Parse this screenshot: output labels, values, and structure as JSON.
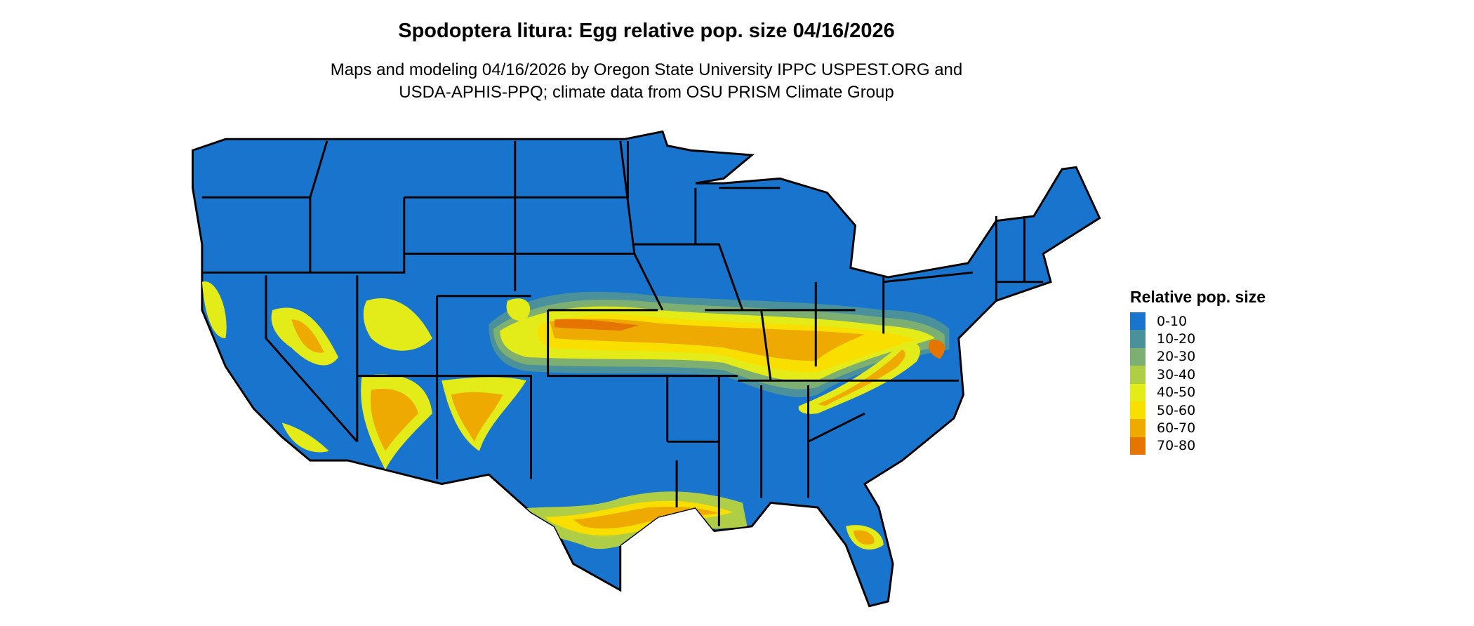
{
  "title": "Spodoptera litura: Egg relative pop. size 04/16/2026",
  "subtitle_line1": "Maps and modeling 04/16/2026 by Oregon State University IPPC USPEST.ORG and",
  "subtitle_line2": "USDA-APHIS-PPQ; climate data from OSU PRISM Climate Group",
  "legend": {
    "title": "Relative pop. size",
    "items": [
      {
        "label": "0-10",
        "color": "#1874CD"
      },
      {
        "label": "10-20",
        "color": "#4A919C"
      },
      {
        "label": "20-30",
        "color": "#7DAF72"
      },
      {
        "label": "30-40",
        "color": "#B0CE45"
      },
      {
        "label": "40-50",
        "color": "#E3EC18"
      },
      {
        "label": "50-60",
        "color": "#F8DF00"
      },
      {
        "label": "60-70",
        "color": "#EEAA00"
      },
      {
        "label": "70-80",
        "color": "#E57500"
      }
    ]
  },
  "map": {
    "region": "Contiguous United States",
    "boundaries": "state",
    "background_class": "0-10"
  }
}
